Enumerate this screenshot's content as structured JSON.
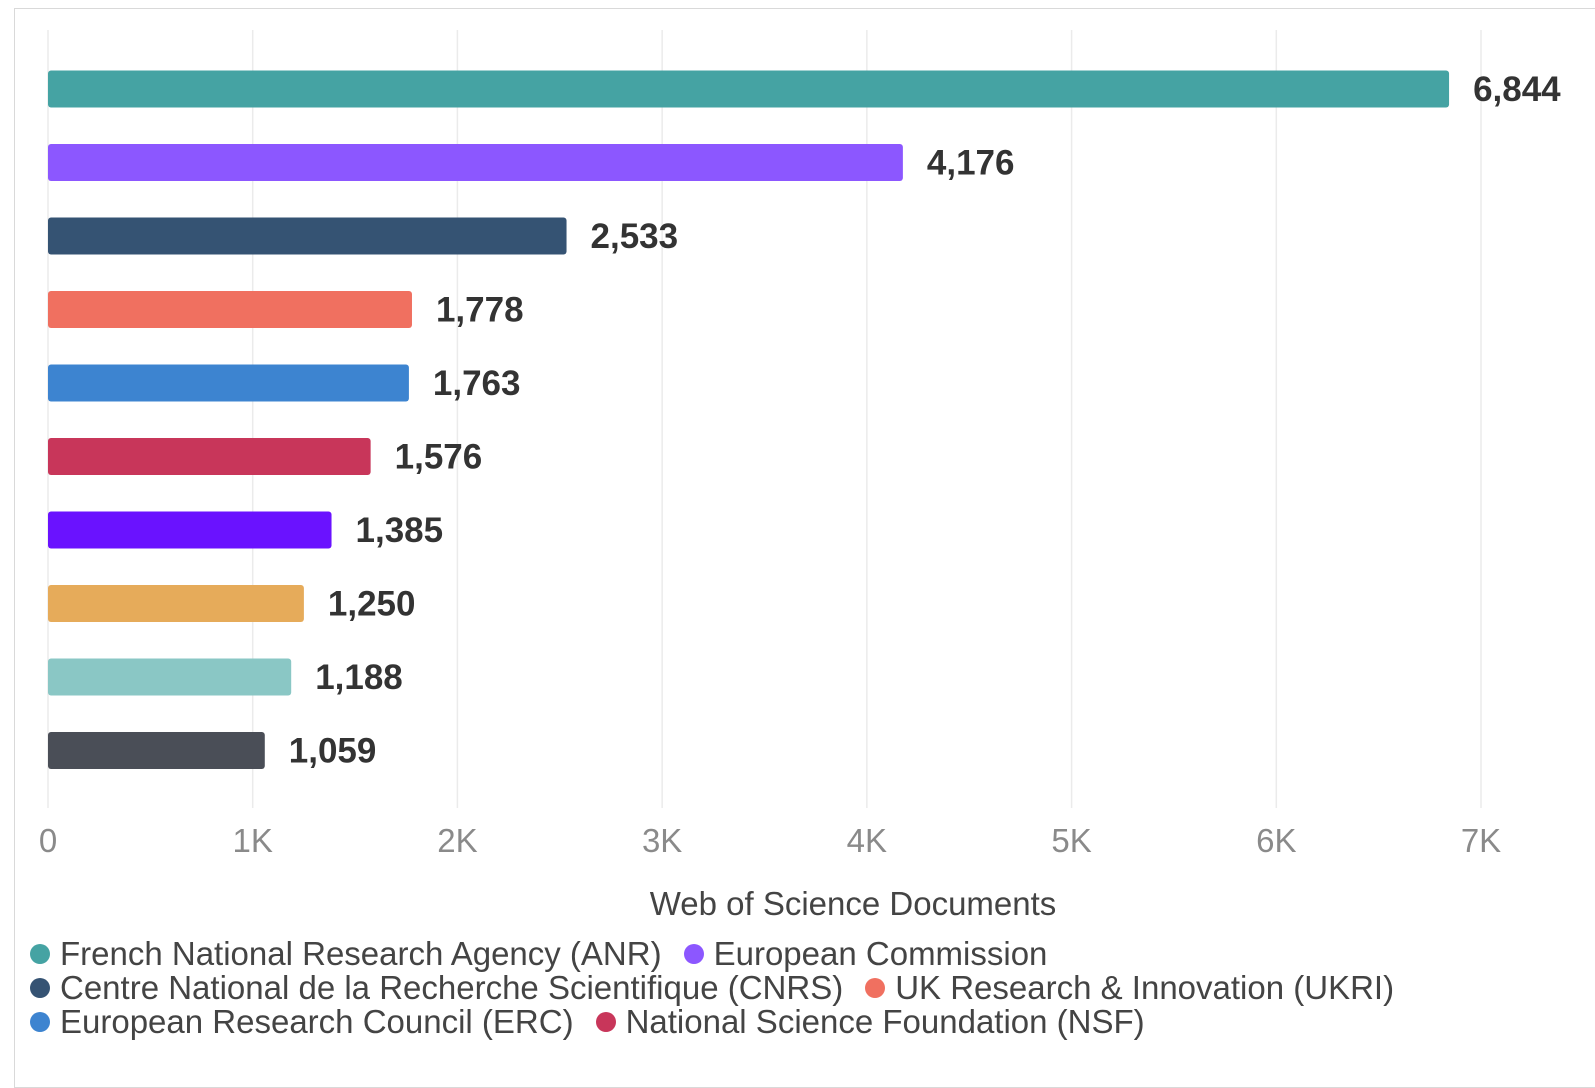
{
  "chart_data": {
    "type": "bar",
    "orientation": "horizontal",
    "categories": [
      "French National Research Agency (ANR)",
      "European Commission",
      "Centre National de la Recherche Scientifique (CNRS)",
      "UK Research & Innovation (UKRI)",
      "European Research Council (ERC)",
      "National Science Foundation (NSF)",
      "",
      "",
      "",
      ""
    ],
    "values": [
      6844,
      4176,
      2533,
      1778,
      1763,
      1576,
      1385,
      1250,
      1188,
      1059
    ],
    "value_labels": [
      "6,844",
      "4,176",
      "2,533",
      "1,778",
      "1,763",
      "1,576",
      "1,385",
      "1,250",
      "1,188",
      "1,059"
    ],
    "colors": [
      "#45a3a3",
      "#8c57ff",
      "#355373",
      "#f07060",
      "#3d84d0",
      "#c8365a",
      "#6a12ff",
      "#e6ab5a",
      "#8ac7c5",
      "#4a4e57"
    ],
    "xlabel": "Web of Science Documents",
    "xlim": [
      0,
      7000
    ],
    "xticks": [
      0,
      1000,
      2000,
      3000,
      4000,
      5000,
      6000,
      7000
    ],
    "xtick_labels": [
      "0",
      "1K",
      "2K",
      "3K",
      "4K",
      "5K",
      "6K",
      "7K"
    ],
    "grid": true,
    "legend_position": "bottom",
    "legend": [
      [
        "French National Research Agency (ANR)",
        "European Commission"
      ],
      [
        "Centre National de la Recherche Scientifique (CNRS)",
        "UK Research & Innovation (UKRI)"
      ],
      [
        "European Research Council (ERC)",
        "National Science Foundation (NSF)"
      ]
    ]
  }
}
